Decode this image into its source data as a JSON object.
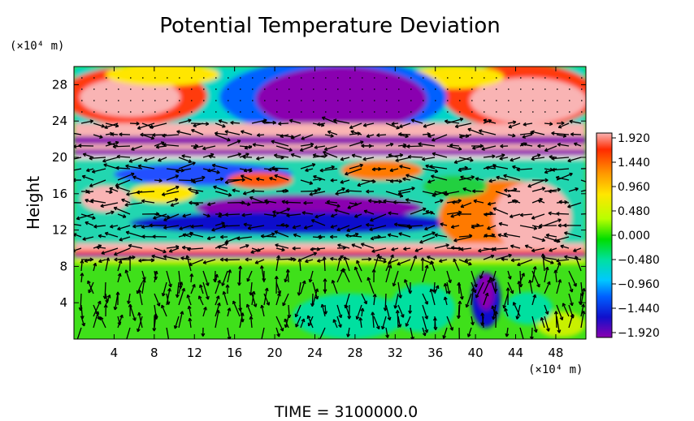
{
  "chart_data": {
    "type": "heatmap",
    "title": "Potential Temperature Deviation",
    "xlabel": "",
    "x_unit": "(×10⁴ m)",
    "ylabel": "Height",
    "y_unit": "(×10⁴ m)",
    "xlim": [
      0,
      51
    ],
    "ylim": [
      0,
      30
    ],
    "x_ticks": [
      "4",
      "8",
      "12",
      "16",
      "20",
      "24",
      "28",
      "32",
      "36",
      "40",
      "44",
      "48"
    ],
    "x_tick_values": [
      4,
      8,
      12,
      16,
      20,
      24,
      28,
      32,
      36,
      40,
      44,
      48
    ],
    "y_ticks": [
      "4",
      "8",
      "12",
      "16",
      "20",
      "24",
      "28"
    ],
    "y_tick_values": [
      4,
      8,
      12,
      16,
      20,
      24,
      28
    ],
    "colorbar": {
      "labels": [
        "1.920",
        "1.440",
        "0.960",
        "0.480",
        "0.000",
        "−0.480",
        "−0.960",
        "−1.440",
        "−1.920"
      ],
      "values": [
        1.92,
        1.44,
        0.96,
        0.48,
        0.0,
        -0.48,
        -0.96,
        -1.44,
        -1.92
      ],
      "colors": [
        "#f9b4b4",
        "#ff2a00",
        "#ff9a00",
        "#ffe600",
        "#b8ff00",
        "#00dd00",
        "#00e0a0",
        "#00c8ff",
        "#0060ff",
        "#1010cc",
        "#8a00b0"
      ]
    },
    "overlay": "wind vector arrows",
    "time_label": "TIME  =  3100000.0"
  }
}
